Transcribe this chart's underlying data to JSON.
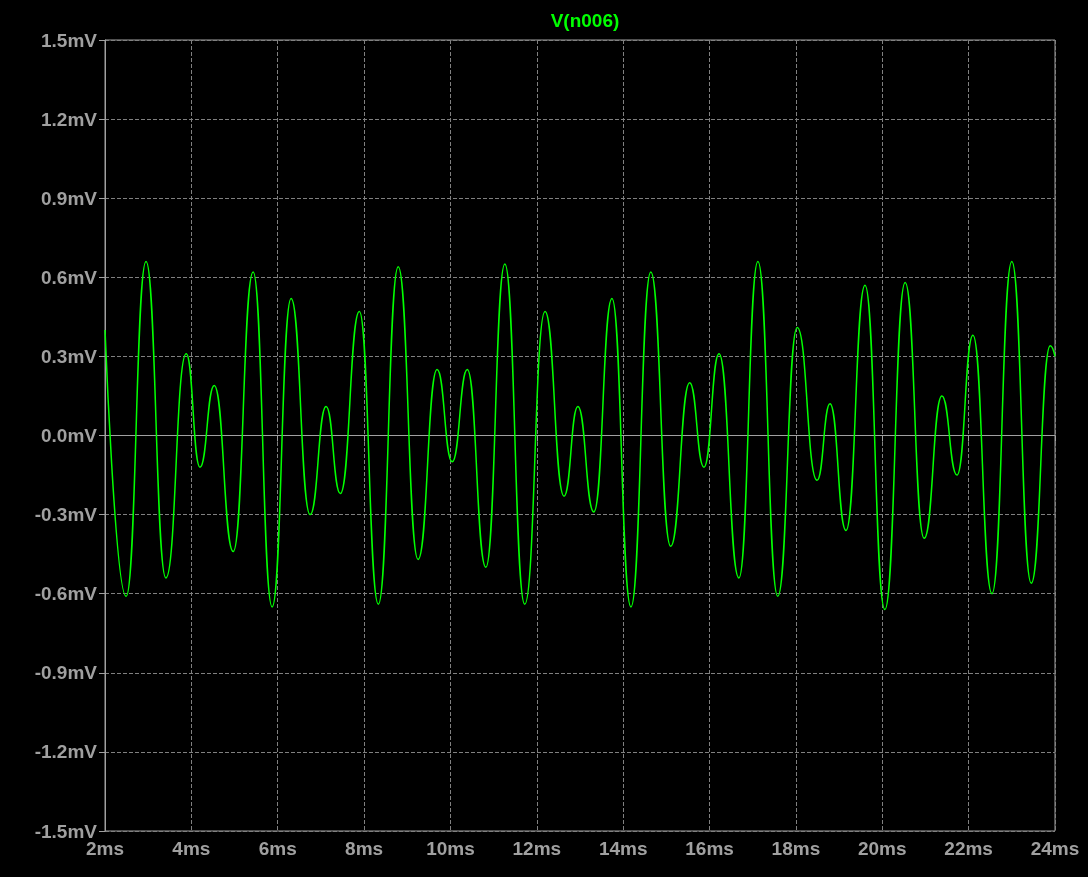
{
  "chart_data": {
    "type": "line",
    "title": "V(n006)",
    "x": [
      2.0,
      2.49,
      2.95,
      3.41,
      3.88,
      4.2,
      4.53,
      4.97,
      5.43,
      5.87,
      6.31,
      6.75,
      7.12,
      7.45,
      7.89,
      8.33,
      8.79,
      9.25,
      9.69,
      10.04,
      10.39,
      10.82,
      11.26,
      11.72,
      12.19,
      12.63,
      12.95,
      13.32,
      13.74,
      14.18,
      14.64,
      15.1,
      15.54,
      15.87,
      16.22,
      16.68,
      17.12,
      17.58,
      18.03,
      18.49,
      18.79,
      19.16,
      19.6,
      20.06,
      20.53,
      20.97,
      21.38,
      21.73,
      22.1,
      22.54,
      23.0,
      23.45,
      23.89,
      24.0
    ],
    "series": [
      {
        "color": "#00ff00",
        "values": [
          0.4,
          -0.61,
          0.66,
          -0.54,
          0.31,
          -0.12,
          0.19,
          -0.44,
          0.62,
          -0.65,
          0.52,
          -0.3,
          0.11,
          -0.22,
          0.47,
          -0.64,
          0.64,
          -0.47,
          0.25,
          -0.1,
          0.25,
          -0.5,
          0.65,
          -0.64,
          0.47,
          -0.23,
          0.11,
          -0.29,
          0.52,
          -0.65,
          0.62,
          -0.42,
          0.2,
          -0.12,
          0.31,
          -0.54,
          0.66,
          -0.61,
          0.41,
          -0.17,
          0.12,
          -0.36,
          0.57,
          -0.66,
          0.58,
          -0.39,
          0.15,
          -0.15,
          0.38,
          -0.6,
          0.66,
          -0.56,
          0.34,
          0.3
        ]
      }
    ],
    "xlim": [
      2,
      24
    ],
    "xticks": [
      {
        "value": 2,
        "label": "2ms"
      },
      {
        "value": 4,
        "label": "4ms"
      },
      {
        "value": 6,
        "label": "6ms"
      },
      {
        "value": 8,
        "label": "8ms"
      },
      {
        "value": 10,
        "label": "10ms"
      },
      {
        "value": 12,
        "label": "12ms"
      },
      {
        "value": 14,
        "label": "14ms"
      },
      {
        "value": 16,
        "label": "16ms"
      },
      {
        "value": 18,
        "label": "18ms"
      },
      {
        "value": 20,
        "label": "20ms"
      },
      {
        "value": 22,
        "label": "22ms"
      },
      {
        "value": 24,
        "label": "24ms"
      }
    ],
    "ylim": [
      -1.5,
      1.5
    ],
    "yticks": [
      {
        "value": -1.5,
        "label": "-1.5mV"
      },
      {
        "value": -1.2,
        "label": "-1.2mV"
      },
      {
        "value": -0.9,
        "label": "-0.9mV"
      },
      {
        "value": -0.6,
        "label": "-0.6mV"
      },
      {
        "value": -0.3,
        "label": "-0.3mV"
      },
      {
        "value": 0,
        "label": "0.0mV"
      },
      {
        "value": 0.3,
        "label": "0.3mV"
      },
      {
        "value": 0.6,
        "label": "0.6mV"
      },
      {
        "value": 0.9,
        "label": "0.9mV"
      },
      {
        "value": 1.2,
        "label": "1.2mV"
      },
      {
        "value": 1.5,
        "label": "1.5mV"
      }
    ],
    "grid": true,
    "marker": "none",
    "line_style": "solid"
  }
}
